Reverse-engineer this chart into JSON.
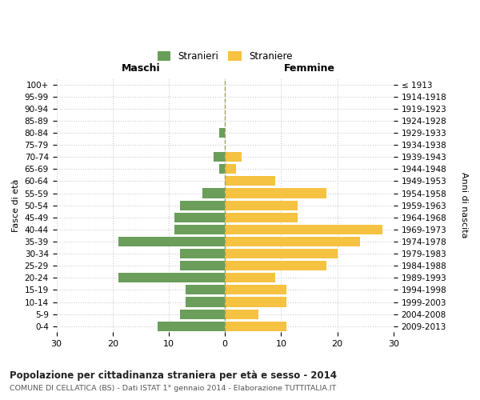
{
  "age_groups": [
    "100+",
    "95-99",
    "90-94",
    "85-89",
    "80-84",
    "75-79",
    "70-74",
    "65-69",
    "60-64",
    "55-59",
    "50-54",
    "45-49",
    "40-44",
    "35-39",
    "30-34",
    "25-29",
    "20-24",
    "15-19",
    "10-14",
    "5-9",
    "0-4"
  ],
  "birth_years": [
    "≤ 1913",
    "1914-1918",
    "1919-1923",
    "1924-1928",
    "1929-1933",
    "1934-1938",
    "1939-1943",
    "1944-1948",
    "1949-1953",
    "1954-1958",
    "1959-1963",
    "1964-1968",
    "1969-1973",
    "1974-1978",
    "1979-1983",
    "1984-1988",
    "1989-1993",
    "1994-1998",
    "1999-2003",
    "2004-2008",
    "2009-2013"
  ],
  "males": [
    0,
    0,
    0,
    0,
    1,
    0,
    2,
    1,
    0,
    4,
    8,
    9,
    9,
    19,
    8,
    8,
    19,
    7,
    7,
    8,
    12
  ],
  "females": [
    0,
    0,
    0,
    0,
    0,
    0,
    3,
    2,
    9,
    18,
    13,
    13,
    28,
    24,
    20,
    18,
    9,
    11,
    11,
    6,
    11
  ],
  "male_color": "#6a9e5a",
  "female_color": "#f5c242",
  "center_line_color": "#a0a060",
  "grid_color": "#cccccc",
  "background_color": "#ffffff",
  "title": "Popolazione per cittadinanza straniera per età e sesso - 2014",
  "subtitle": "COMUNE DI CELLATICA (BS) - Dati ISTAT 1° gennaio 2014 - Elaborazione TUTTITALIA.IT",
  "label_maschi": "Maschi",
  "label_femmine": "Femmine",
  "ylabel_left": "Fasce di età",
  "ylabel_right": "Anni di nascita",
  "legend_male": "Stranieri",
  "legend_female": "Straniere",
  "xlim": 30,
  "bar_height": 0.8
}
